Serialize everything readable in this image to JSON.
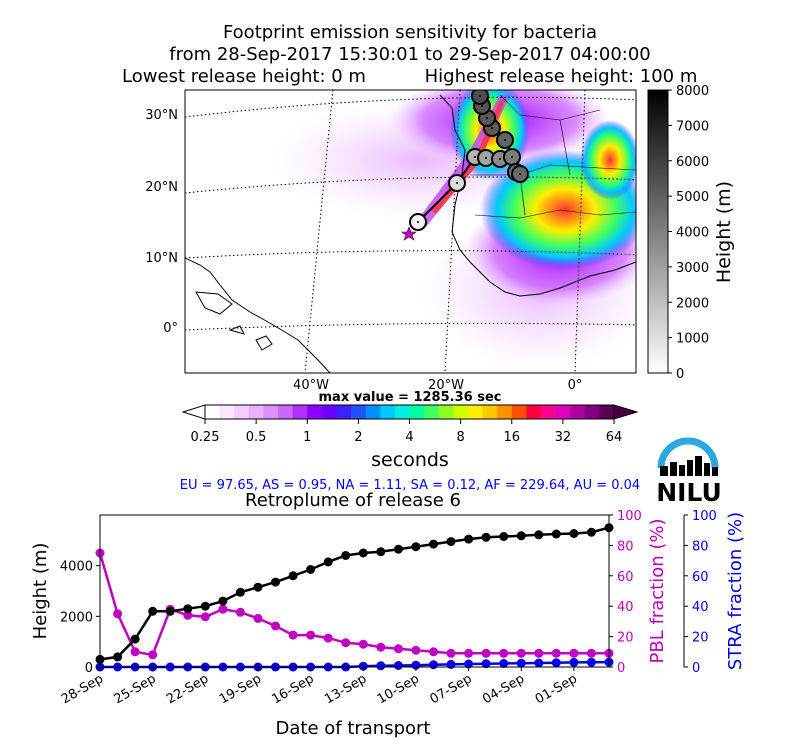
{
  "header": {
    "title_line1": "Footprint emission sensitivity for bacteria",
    "title_line2": "from 28-Sep-2017 15:30:01 to 29-Sep-2017 04:00:00",
    "title_line3_left": "Lowest release height: 0 m",
    "title_line3_right": "Highest release height: 100 m"
  },
  "map": {
    "max_value_text": "max value = 1285.36 sec",
    "lat_labels": [
      "30°N",
      "20°N",
      "10°N",
      "0°"
    ],
    "lon_labels": [
      "40°W",
      "20°W",
      "0°"
    ],
    "colorbar_label": "seconds",
    "colorbar_ticks": [
      "0.25",
      "0.5",
      "1",
      "2",
      "4",
      "8",
      "16",
      "32",
      "64"
    ],
    "height_colorbar_label": "Height (m)",
    "height_colorbar_ticks": [
      "0",
      "1000",
      "2000",
      "3000",
      "4000",
      "5000",
      "6000",
      "7000",
      "8000"
    ],
    "trajectory_heights_m": [
      300,
      500,
      1100,
      2200,
      2300,
      2400,
      2600,
      2900,
      3100,
      3300,
      3600,
      3800,
      4100,
      4300,
      4400,
      4500,
      4600,
      4700,
      4800,
      4900,
      5000,
      5100,
      5150,
      5200,
      5250,
      5300,
      5350,
      5400,
      5450,
      5550
    ]
  },
  "logo": {
    "text": "NILU",
    "color": "#2aa8e0"
  },
  "fractions_text": "EU = 97.65,  AS = 0.95,  NA = 1.11,  SA = 0.12,  AF = 229.64,  AU = 0.04",
  "chart_data": {
    "type": "line",
    "title": "Retroplume of release 6",
    "xlabel": "Date of transport",
    "ylabel": "Height (m)",
    "ylabel_right1": "PBL fraction (%)",
    "ylabel_right2": "STRA fraction (%)",
    "x_tick_labels": [
      "28-Sep",
      "25-Sep",
      "22-Sep",
      "19-Sep",
      "16-Sep",
      "13-Sep",
      "10-Sep",
      "07-Sep",
      "04-Sep",
      "01-Sep"
    ],
    "x_tick_days_back": [
      0,
      3,
      6,
      9,
      12,
      15,
      18,
      21,
      24,
      27
    ],
    "x_days_back": [
      0,
      1,
      2,
      3,
      4,
      5,
      6,
      7,
      8,
      9,
      10,
      11,
      12,
      13,
      14,
      15,
      16,
      17,
      18,
      19,
      20,
      21,
      22,
      23,
      24,
      25,
      26,
      27,
      28,
      29
    ],
    "ylim": [
      0,
      6000
    ],
    "y_ticks": [
      0,
      2000,
      4000
    ],
    "y2lim": [
      0,
      100
    ],
    "y2_ticks": [
      0,
      20,
      40,
      60,
      80,
      100
    ],
    "series": [
      {
        "name": "Height",
        "axis": "left",
        "color": "#000000",
        "values": [
          300,
          400,
          1100,
          2200,
          2200,
          2300,
          2400,
          2600,
          2950,
          3150,
          3350,
          3600,
          3850,
          4150,
          4400,
          4500,
          4550,
          4650,
          4750,
          4850,
          4950,
          5050,
          5120,
          5150,
          5180,
          5220,
          5250,
          5270,
          5320,
          5500
        ]
      },
      {
        "name": "PBL fraction",
        "axis": "right1",
        "color": "#c000c0",
        "values": [
          75,
          35,
          10,
          8,
          38,
          34,
          33,
          38,
          36,
          32,
          27,
          21,
          21,
          19,
          16,
          15,
          13,
          12,
          11,
          10,
          9,
          9,
          9,
          9,
          9,
          9,
          9,
          9,
          9,
          9
        ]
      },
      {
        "name": "STRA fraction",
        "axis": "right2",
        "color": "#0000ee",
        "values": [
          0,
          0,
          0,
          0,
          0,
          0,
          0,
          0,
          0,
          0,
          0,
          0,
          0,
          0,
          0,
          0.5,
          0.8,
          1,
          1.2,
          1.5,
          1.7,
          2,
          2.2,
          2.3,
          2.5,
          2.6,
          2.8,
          3,
          3.1,
          3.2
        ]
      }
    ]
  }
}
